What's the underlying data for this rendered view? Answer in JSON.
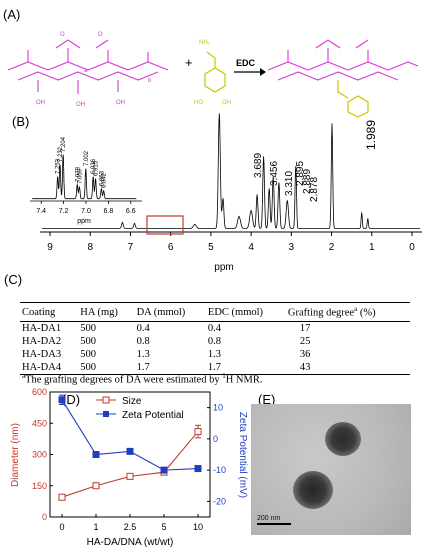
{
  "panels": {
    "a": "(A)",
    "b": "(B)",
    "c": "(C)",
    "d": "(D)",
    "e": "(E)"
  },
  "scheme": {
    "reagent": "EDC",
    "plus": "+",
    "nh2": "NH₂",
    "ho": "HO",
    "oh": "OH"
  },
  "nmr": {
    "xlabel": "ppm",
    "main_ticks": [
      "9",
      "8",
      "7",
      "6",
      "5",
      "4",
      "3",
      "2",
      "1",
      "0"
    ],
    "peak_labels": [
      "3.689",
      "3.456",
      "3.310",
      "2.895",
      "2.889",
      "2.878",
      "1.989"
    ],
    "inset_peaks": [
      "7.253",
      "7.232",
      "7.204",
      "7.078",
      "7.059",
      "7.002",
      "6.936",
      "6.915",
      "6.863",
      "6.842"
    ],
    "inset_ticks": [
      "7.4",
      "7.2",
      "7.0",
      "6.8",
      "6.6"
    ],
    "inset_xlabel": "ppm"
  },
  "table": {
    "headers": [
      "Coating",
      "HA (mg)",
      "DA (mmol)",
      "EDC (mmol)",
      "Grafting degree",
      "(%)"
    ],
    "header_sup": "a",
    "rows": [
      [
        "HA-DA1",
        "500",
        "0.4",
        "0.4",
        "17"
      ],
      [
        "HA-DA2",
        "500",
        "0.8",
        "0.8",
        "25"
      ],
      [
        "HA-DA3",
        "500",
        "1.3",
        "1.3",
        "36"
      ],
      [
        "HA-DA4",
        "500",
        "1.7",
        "1.7",
        "43"
      ]
    ],
    "footnote_sup": "a",
    "footnote": "The grafting degrees of DA were estimated by",
    "footnote_sup2": "1",
    "footnote_end": "H NMR."
  },
  "chart_data": {
    "type": "line",
    "categories": [
      "0",
      "1",
      "2.5",
      "5",
      "10"
    ],
    "xlabel": "HA-DA/DNA (wt/wt)",
    "ylabel": "Diameter (nm)",
    "y2label": "Zeta Potential (mV)",
    "ylim": [
      0,
      600
    ],
    "y2lim": [
      -25,
      15
    ],
    "yticks": [
      "0",
      "150",
      "300",
      "450",
      "600"
    ],
    "y2ticks": [
      "-20",
      "-10",
      "0",
      "10"
    ],
    "legend_position": "top-center",
    "series": [
      {
        "name": "Size",
        "axis": "left",
        "color": "#c0392b",
        "marker": "open-square",
        "values": [
          95,
          150,
          195,
          215,
          410
        ],
        "errors": [
          0,
          0,
          0,
          0,
          30
        ]
      },
      {
        "name": "Zeta Potential",
        "axis": "right",
        "color": "#1f3fbf",
        "marker": "filled-square",
        "values": [
          12.5,
          -5,
          -4,
          -10,
          -9.5
        ],
        "errors": [
          1.5,
          0,
          0,
          0,
          0
        ]
      }
    ]
  },
  "tem": {
    "scale": "200 nm"
  },
  "colors": {
    "polymer": "#d63bd6",
    "dopamine": "#e6e600"
  }
}
